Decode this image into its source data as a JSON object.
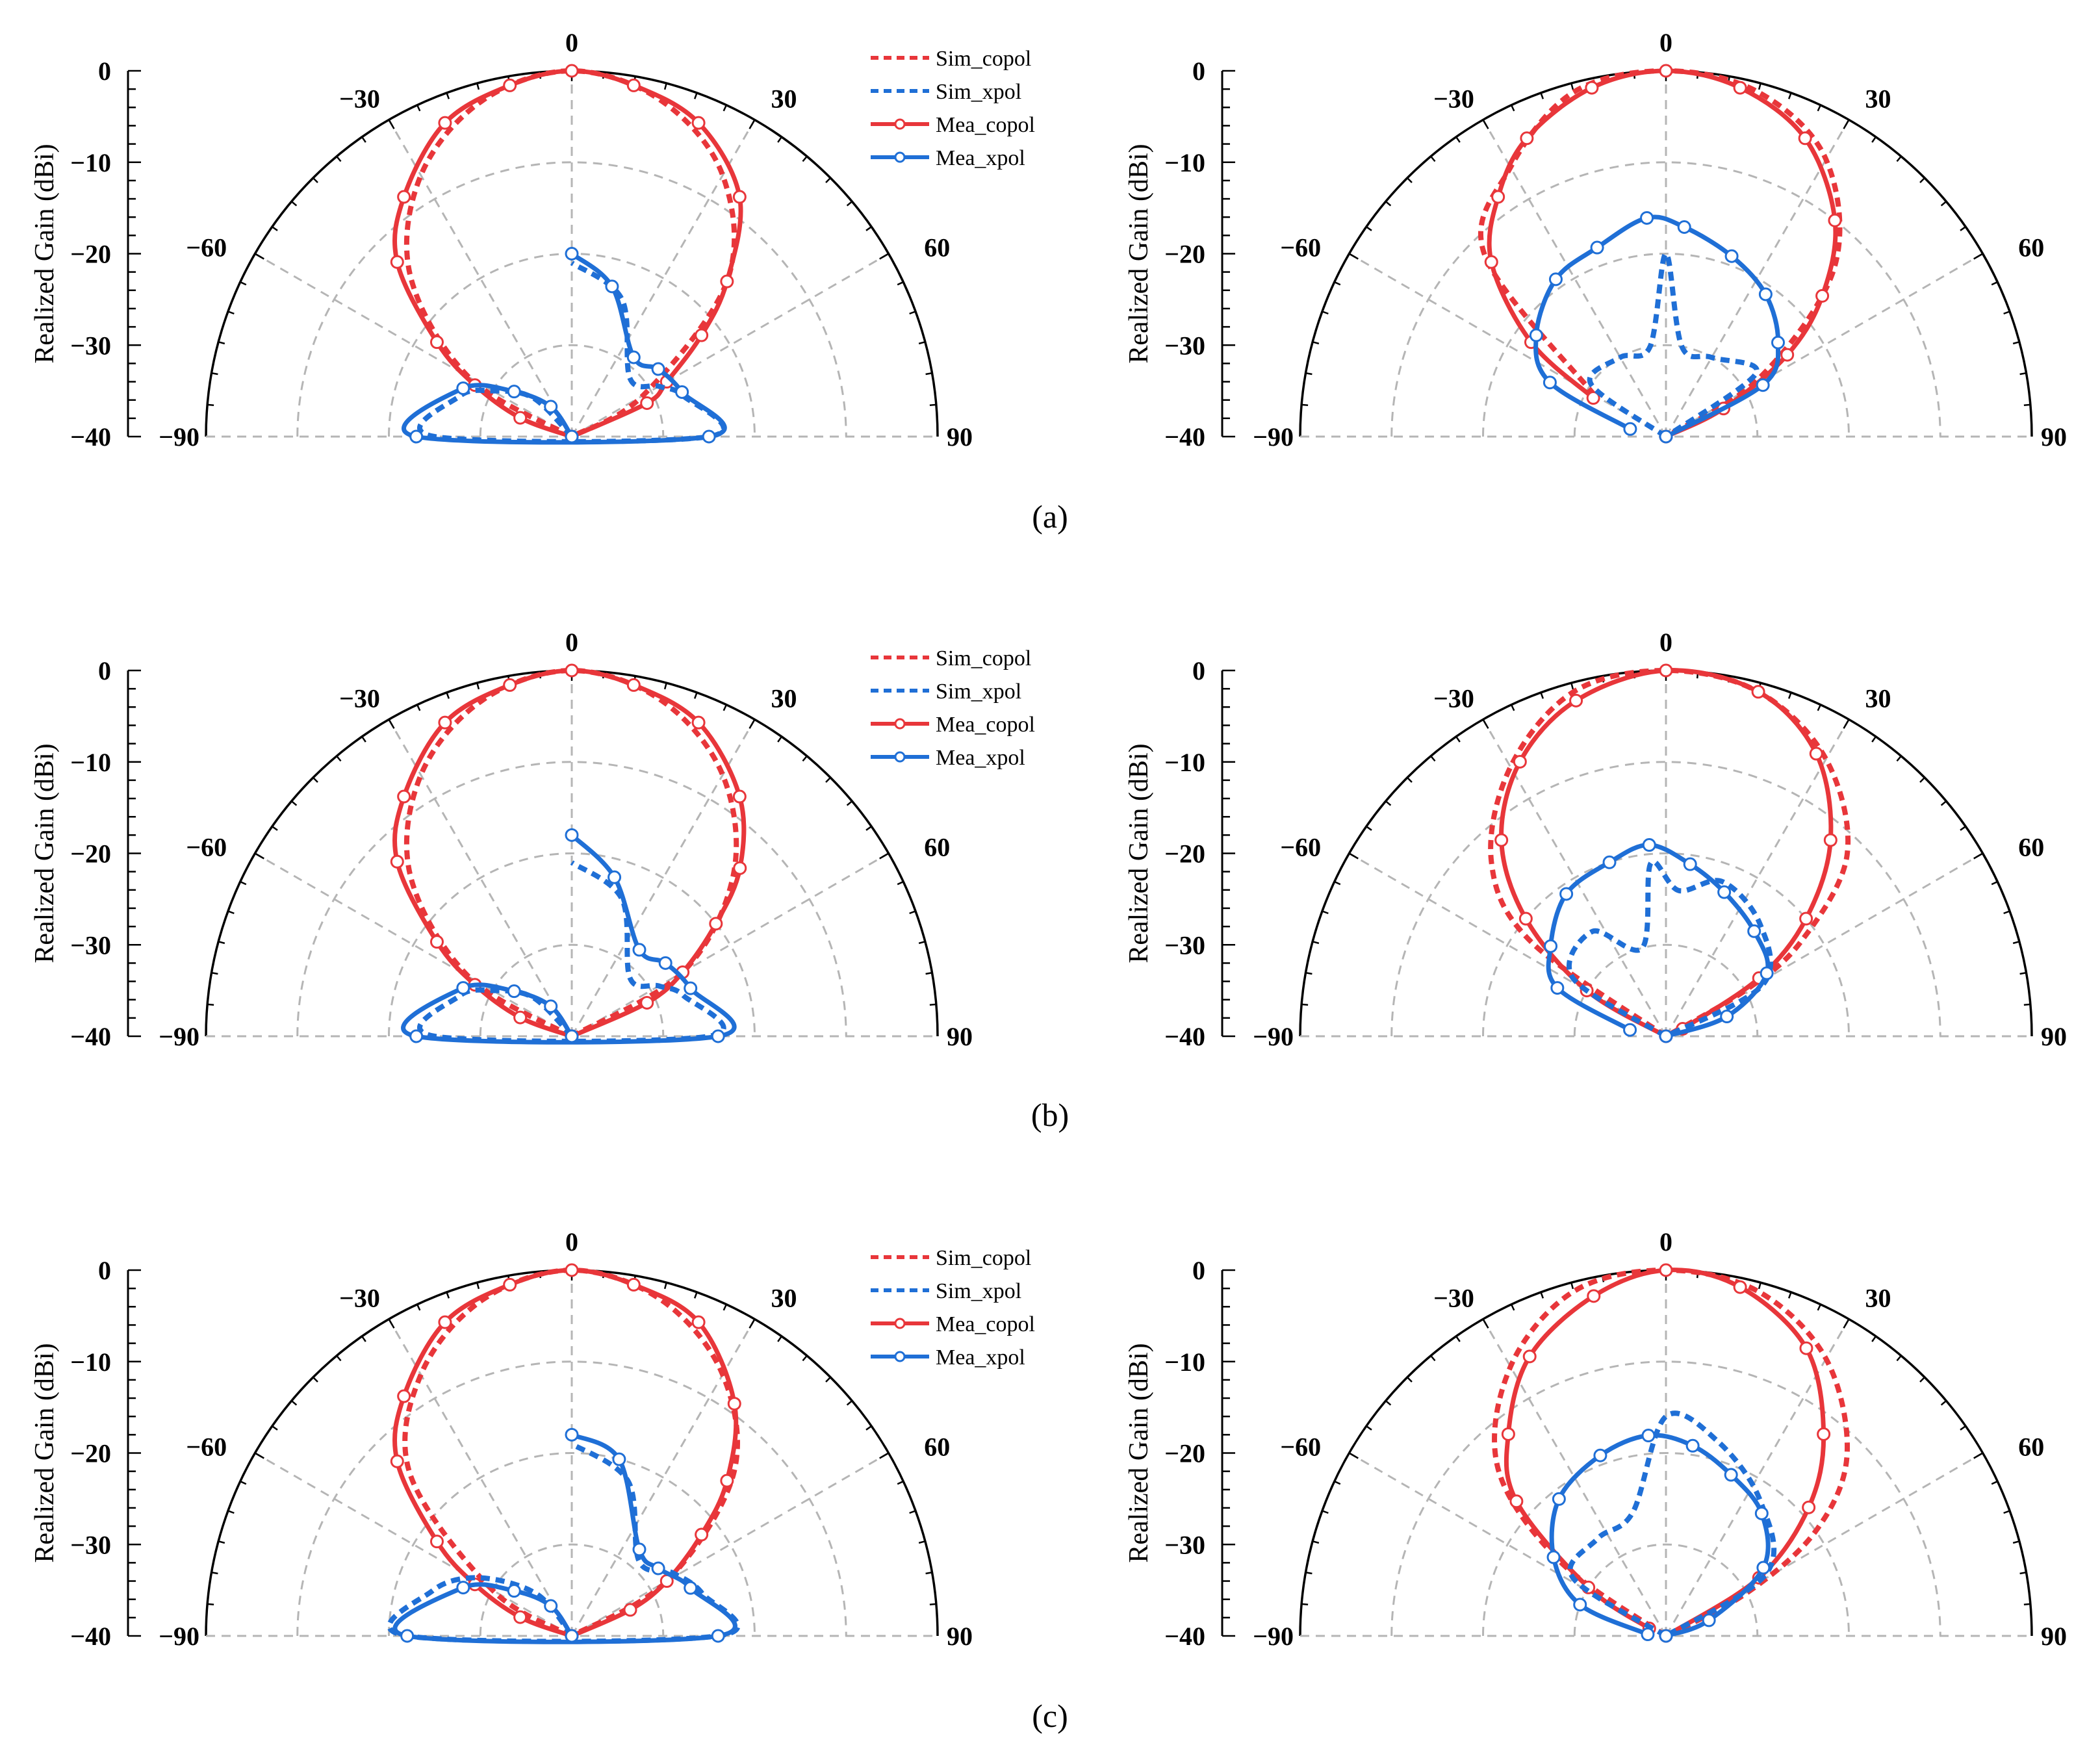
{
  "figure": {
    "captions": [
      "(a)",
      "(b)",
      "(c)"
    ],
    "legend": [
      "Sim_copol",
      "Sim_xpol",
      "Mea_copol",
      "Mea_xpol"
    ],
    "colors": {
      "copol": "#e8363a",
      "xpol": "#1f6fd6",
      "grid": "#b5b5b5",
      "axis": "#000000"
    }
  },
  "chart_data": [
    {
      "id": "a-left",
      "type": "line",
      "coordinate_system": "polar-half",
      "ylabel": "Realized Gain (dBi)",
      "angle_range": [
        -90,
        90
      ],
      "r_range": [
        -40,
        0
      ],
      "angle_ticks": [
        -90,
        -60,
        -30,
        0,
        30,
        60,
        90
      ],
      "r_ticks": [
        0,
        -10,
        -20,
        -30,
        -40
      ],
      "legend_shown": true,
      "series": [
        {
          "name": "Sim_copol",
          "style": "dotted",
          "color": "copol",
          "angles": [
            -75,
            -60,
            -45,
            -30,
            -15,
            0,
            15,
            30,
            45,
            60,
            75
          ],
          "values": [
            -40,
            -27,
            -15,
            -7,
            -2,
            0,
            -2,
            -7,
            -16,
            -31,
            -40
          ]
        },
        {
          "name": "Mea_copol",
          "style": "solid-marker",
          "color": "copol",
          "angles": [
            -82,
            -70,
            -62,
            -55,
            -45,
            -35,
            -22,
            -10,
            0,
            10,
            22,
            35,
            45,
            52,
            60,
            66,
            75
          ],
          "values": [
            -40,
            -34,
            -28,
            -22,
            -13,
            -8,
            -3,
            -1,
            0,
            -1,
            -3,
            -8,
            -16,
            -22,
            -28,
            -31,
            -40
          ]
        },
        {
          "name": "Sim_xpol",
          "style": "dotted",
          "color": "xpol",
          "angles": [
            -20,
            -45,
            -60,
            -70,
            -90,
            90,
            70,
            60,
            45,
            20,
            0
          ],
          "values": [
            -40,
            -34,
            -30,
            -27,
            -25,
            -25,
            -27,
            -29,
            -31,
            -24,
            -21
          ]
        },
        {
          "name": "Mea_xpol",
          "style": "solid-marker",
          "color": "xpol",
          "angles": [
            -12,
            -35,
            -52,
            -66,
            -90,
            90,
            68,
            52,
            38,
            15,
            0
          ],
          "values": [
            -40,
            -36,
            -32,
            -27,
            -23,
            -25,
            -27,
            -28,
            -29,
            -23,
            -20
          ]
        }
      ]
    },
    {
      "id": "a-right",
      "type": "line",
      "coordinate_system": "polar-half",
      "ylabel": "Realized Gain (dBi)",
      "angle_range": [
        -90,
        90
      ],
      "r_range": [
        -40,
        0
      ],
      "angle_ticks": [
        -90,
        -60,
        -30,
        0,
        30,
        60,
        90
      ],
      "r_ticks": [
        0,
        -10,
        -20,
        -30,
        -40
      ],
      "legend_shown": false,
      "series": [
        {
          "name": "Sim_copol",
          "style": "dotted",
          "color": "copol",
          "angles": [
            -60,
            -45,
            -30,
            -15,
            0,
            15,
            30,
            45,
            58,
            68
          ],
          "values": [
            -31,
            -12,
            -6,
            -1,
            0,
            -1,
            -5,
            -14,
            -28,
            -40
          ]
        },
        {
          "name": "Mea_copol",
          "style": "solid-marker",
          "color": "copol",
          "angles": [
            -62,
            -55,
            -45,
            -35,
            -25,
            -12,
            0,
            12,
            25,
            38,
            48,
            56,
            64,
            70
          ],
          "values": [
            -31,
            -22,
            -13,
            -8,
            -4,
            -1,
            0,
            -1,
            -4,
            -10,
            -17,
            -24,
            -33,
            -40
          ]
        },
        {
          "name": "Sim_xpol",
          "style": "dotted",
          "color": "xpol",
          "angles": [
            -80,
            -55,
            -30,
            -10,
            0,
            10,
            30,
            55,
            80
          ],
          "values": [
            -40,
            -30,
            -30,
            -30,
            -20,
            -30,
            -30,
            -28,
            -40
          ]
        },
        {
          "name": "Mea_xpol",
          "style": "solid-marker",
          "color": "xpol",
          "angles": [
            -78,
            -65,
            -52,
            -35,
            -20,
            -5,
            5,
            20,
            35,
            50,
            62,
            75
          ],
          "values": [
            -36,
            -26,
            -22,
            -19,
            -18,
            -16,
            -17,
            -19,
            -21,
            -24,
            -28,
            -40
          ]
        }
      ]
    },
    {
      "id": "b-left",
      "type": "line",
      "coordinate_system": "polar-half",
      "ylabel": "Realized Gain (dBi)",
      "angle_range": [
        -90,
        90
      ],
      "r_range": [
        -40,
        0
      ],
      "angle_ticks": [
        -90,
        -60,
        -30,
        0,
        30,
        60,
        90
      ],
      "r_ticks": [
        0,
        -10,
        -20,
        -30,
        -40
      ],
      "legend_shown": true,
      "series": [
        {
          "name": "Sim_copol",
          "style": "dotted",
          "color": "copol",
          "angles": [
            -75,
            -60,
            -45,
            -30,
            -15,
            0,
            15,
            30,
            45,
            60,
            75
          ],
          "values": [
            -40,
            -27,
            -15,
            -7,
            -2,
            0,
            -2,
            -7,
            -15,
            -26,
            -40
          ]
        },
        {
          "name": "Mea_copol",
          "style": "solid-marker",
          "color": "copol",
          "angles": [
            -80,
            -70,
            -62,
            -55,
            -45,
            -35,
            -22,
            -10,
            0,
            10,
            22,
            35,
            45,
            52,
            60,
            66,
            72
          ],
          "values": [
            -40,
            -34,
            -28,
            -22,
            -13,
            -8,
            -3,
            -1,
            0,
            -1,
            -3,
            -8,
            -14,
            -20,
            -26,
            -31,
            -40
          ]
        },
        {
          "name": "Sim_xpol",
          "style": "dotted",
          "color": "xpol",
          "angles": [
            -20,
            -45,
            -60,
            -70,
            -90,
            90,
            70,
            60,
            45,
            20,
            0
          ],
          "values": [
            -40,
            -34,
            -30,
            -27,
            -25,
            -25,
            -27,
            -29,
            -31,
            -24,
            -21
          ]
        },
        {
          "name": "Mea_xpol",
          "style": "solid-marker",
          "color": "xpol",
          "angles": [
            -12,
            -35,
            -52,
            -66,
            -90,
            90,
            68,
            52,
            38,
            15,
            0
          ],
          "values": [
            -40,
            -36,
            -32,
            -27,
            -23,
            -24,
            -26,
            -27,
            -28,
            -22,
            -18
          ]
        }
      ]
    },
    {
      "id": "b-right",
      "type": "line",
      "coordinate_system": "polar-half",
      "ylabel": "Realized Gain (dBi)",
      "angle_range": [
        -90,
        90
      ],
      "r_range": [
        -40,
        0
      ],
      "angle_ticks": [
        -90,
        -60,
        -30,
        0,
        30,
        60,
        90
      ],
      "r_ticks": [
        0,
        -10,
        -20,
        -30,
        -40
      ],
      "legend_shown": false,
      "series": [
        {
          "name": "Sim_copol",
          "style": "dotted",
          "color": "copol",
          "angles": [
            -66,
            -55,
            -45,
            -30,
            -15,
            0,
            15,
            30,
            45,
            55,
            60,
            66
          ],
          "values": [
            -40,
            -22,
            -13,
            -6,
            -1,
            0,
            -1,
            -5,
            -12,
            -22,
            -30,
            -40
          ]
        },
        {
          "name": "Mea_copol",
          "style": "solid-marker",
          "color": "copol",
          "angles": [
            -68,
            -60,
            -50,
            -40,
            -28,
            -15,
            0,
            15,
            28,
            40,
            50,
            58,
            66
          ],
          "values": [
            -40,
            -30,
            -20,
            -12,
            -6,
            -2,
            0,
            -1,
            -5,
            -12,
            -20,
            -28,
            -38
          ]
        },
        {
          "name": "Sim_xpol",
          "style": "dotted",
          "color": "xpol",
          "angles": [
            -80,
            -58,
            -35,
            -15,
            -5,
            5,
            20,
            40,
            62,
            82
          ],
          "values": [
            -40,
            -28,
            -26,
            -30,
            -21,
            -24,
            -22,
            -24,
            -28,
            -40
          ]
        },
        {
          "name": "Mea_xpol",
          "style": "solid-marker",
          "color": "xpol",
          "angles": [
            -80,
            -66,
            -52,
            -35,
            -18,
            -5,
            8,
            22,
            40,
            58,
            72,
            85
          ],
          "values": [
            -36,
            -27,
            -24,
            -21,
            -20,
            -19,
            -21,
            -23,
            -25,
            -27,
            -33,
            -40
          ]
        }
      ]
    },
    {
      "id": "c-left",
      "type": "line",
      "coordinate_system": "polar-half",
      "ylabel": "Realized Gain (dBi)",
      "angle_range": [
        -90,
        90
      ],
      "r_range": [
        -40,
        0
      ],
      "angle_ticks": [
        -90,
        -60,
        -30,
        0,
        30,
        60,
        90
      ],
      "r_ticks": [
        0,
        -10,
        -20,
        -30,
        -40
      ],
      "legend_shown": true,
      "series": [
        {
          "name": "Sim_copol",
          "style": "dotted",
          "color": "copol",
          "angles": [
            -72,
            -60,
            -45,
            -30,
            -15,
            0,
            15,
            30,
            45,
            60,
            75
          ],
          "values": [
            -40,
            -30,
            -15,
            -7,
            -2,
            0,
            -2,
            -7,
            -15,
            -28,
            -40
          ]
        },
        {
          "name": "Mea_copol",
          "style": "solid-marker",
          "color": "copol",
          "angles": [
            -80,
            -70,
            -62,
            -55,
            -45,
            -35,
            -22,
            -10,
            0,
            10,
            22,
            35,
            45,
            52,
            60,
            66,
            72
          ],
          "values": [
            -40,
            -34,
            -28,
            -22,
            -13,
            -8,
            -3,
            -1,
            0,
            -1,
            -3,
            -9,
            -16,
            -22,
            -28,
            -33,
            -40
          ]
        },
        {
          "name": "Sim_xpol",
          "style": "dotted",
          "color": "xpol",
          "angles": [
            -15,
            -40,
            -58,
            -72,
            -90,
            90,
            72,
            58,
            42,
            20,
            0
          ],
          "values": [
            -40,
            -34,
            -28,
            -24,
            -22,
            -24,
            -25,
            -27,
            -29,
            -22,
            -19
          ]
        },
        {
          "name": "Mea_xpol",
          "style": "solid-marker",
          "color": "xpol",
          "angles": [
            -12,
            -35,
            -52,
            -66,
            -90,
            90,
            68,
            52,
            38,
            15,
            0
          ],
          "values": [
            -40,
            -36,
            -32,
            -27,
            -22,
            -24,
            -26,
            -28,
            -28,
            -20,
            -18
          ]
        }
      ]
    },
    {
      "id": "c-right",
      "type": "line",
      "coordinate_system": "polar-half",
      "ylabel": "Realized Gain (dBi)",
      "angle_range": [
        -90,
        90
      ],
      "r_range": [
        -40,
        0
      ],
      "angle_ticks": [
        -90,
        -60,
        -30,
        0,
        30,
        60,
        90
      ],
      "r_ticks": [
        0,
        -10,
        -20,
        -30,
        -40
      ],
      "legend_shown": false,
      "series": [
        {
          "name": "Sim_copol",
          "style": "dotted",
          "color": "copol",
          "angles": [
            -65,
            -55,
            -45,
            -30,
            -15,
            0,
            15,
            30,
            45,
            55,
            62,
            68
          ],
          "values": [
            -40,
            -26,
            -14,
            -6,
            -1,
            0,
            -1,
            -5,
            -12,
            -20,
            -30,
            -40
          ]
        },
        {
          "name": "Mea_copol",
          "style": "solid-marker",
          "color": "copol",
          "angles": [
            -66,
            -58,
            -48,
            -38,
            -26,
            -12,
            0,
            12,
            26,
            38,
            48,
            58,
            66
          ],
          "values": [
            -38,
            -30,
            -18,
            -12,
            -6,
            -2,
            0,
            -1,
            -5,
            -12,
            -19,
            -28,
            -40
          ]
        },
        {
          "name": "Sim_xpol",
          "style": "dotted",
          "color": "xpol",
          "angles": [
            -80,
            -58,
            -35,
            -15,
            0,
            15,
            35,
            58,
            82
          ],
          "values": [
            -40,
            -28,
            -27,
            -26,
            -16,
            -18,
            -22,
            -27,
            -40
          ]
        },
        {
          "name": "Mea_xpol",
          "style": "solid-marker",
          "color": "xpol",
          "angles": [
            -85,
            -70,
            -55,
            -38,
            -20,
            -5,
            8,
            22,
            38,
            55,
            70,
            85
          ],
          "values": [
            -38,
            -30,
            -25,
            -21,
            -19,
            -18,
            -19,
            -21,
            -23,
            -27,
            -35,
            -40
          ]
        }
      ]
    }
  ]
}
